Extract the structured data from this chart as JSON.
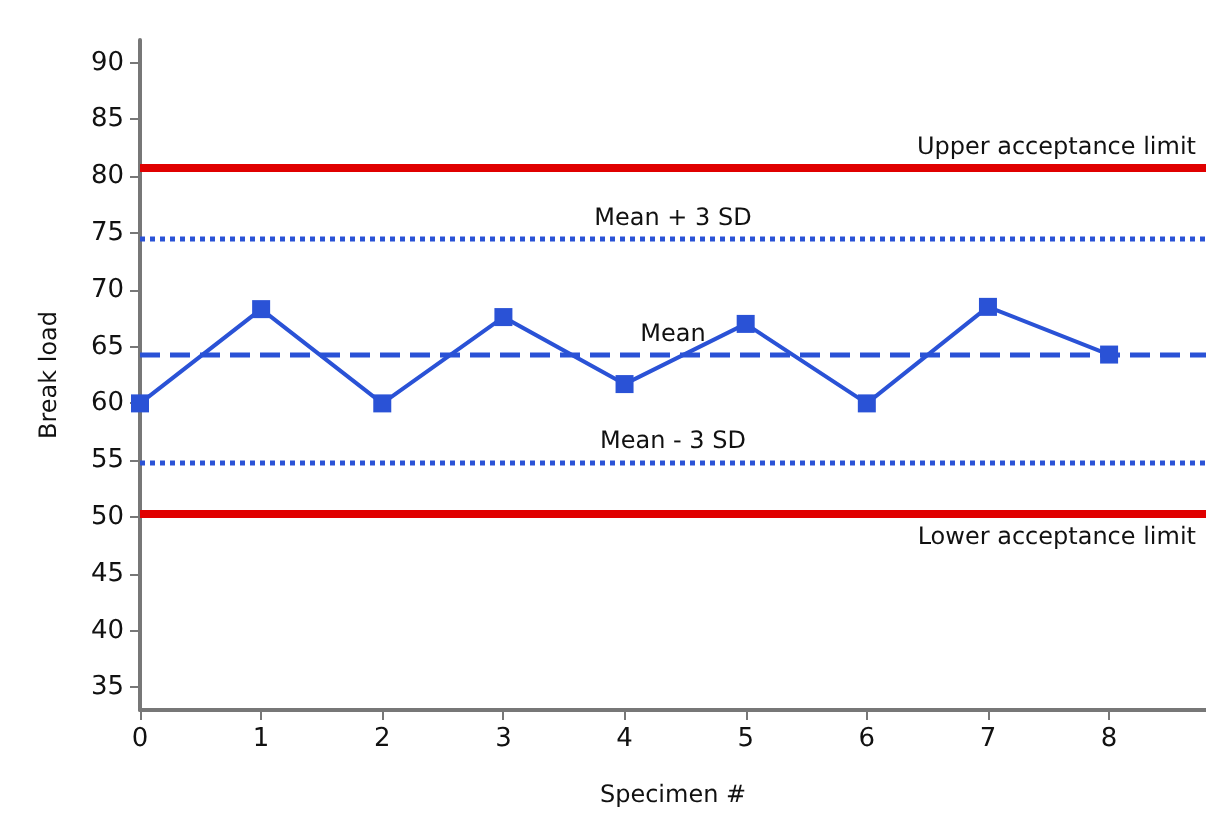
{
  "chart_data": {
    "type": "line",
    "xlabel": "Specimen #",
    "ylabel": "Break load",
    "x": [
      0,
      1,
      2,
      3,
      4,
      5,
      6,
      7,
      8
    ],
    "series": [
      {
        "color": "#2a52d6",
        "values": [
          60,
          68.3,
          60,
          67.6,
          61.7,
          67,
          60,
          68.5,
          64.3
        ]
      }
    ],
    "xlim": [
      0,
      8.8
    ],
    "xticks": [
      0,
      1,
      2,
      3,
      4,
      5,
      6,
      7,
      8
    ],
    "ylim": [
      33,
      92
    ],
    "yticks": [
      35,
      40,
      45,
      50,
      55,
      60,
      65,
      70,
      75,
      80,
      85,
      90
    ],
    "ref_lines": [
      {
        "axis": "y",
        "value": 80.7,
        "label": "Upper acceptance limit",
        "color": "#e00000",
        "line_style": "solid"
      },
      {
        "axis": "y",
        "value": 74.5,
        "label": "Mean + 3 SD",
        "color": "#2a52d6",
        "line_style": "dotted"
      },
      {
        "axis": "y",
        "value": 64.3,
        "label": "Mean",
        "color": "#2a52d6",
        "line_style": "dashed"
      },
      {
        "axis": "y",
        "value": 54.8,
        "label": "Mean - 3 SD",
        "color": "#2a52d6",
        "line_style": "dotted"
      },
      {
        "axis": "y",
        "value": 50.3,
        "label": "Lower acceptance limit",
        "color": "#e00000",
        "line_style": "solid"
      }
    ],
    "grid": false,
    "marker": "square",
    "line_style": "solid"
  }
}
